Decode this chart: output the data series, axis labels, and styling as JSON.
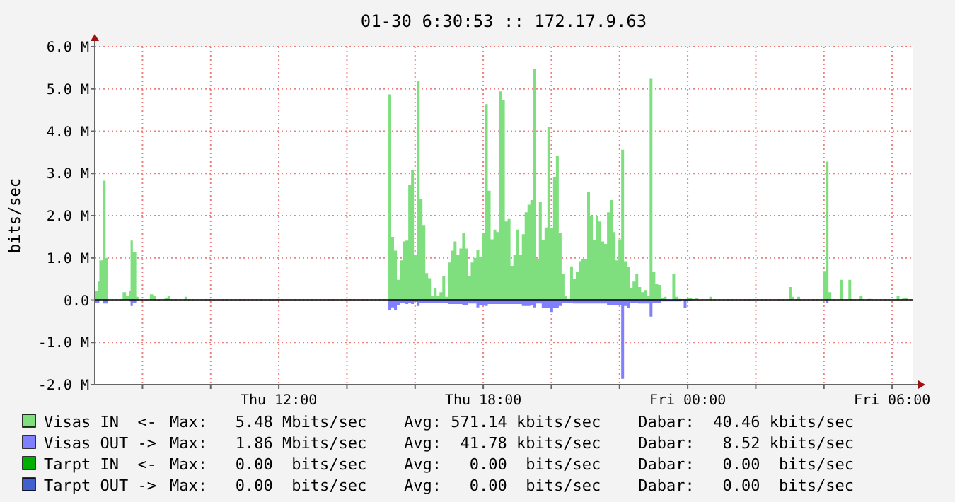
{
  "chart_data": {
    "type": "area",
    "title": "01-30 6:30:53 :: 172.17.9.63",
    "ylabel": "bits/sec",
    "xlim": [
      "--01-29T06:36",
      "--01-30T06:36"
    ],
    "xticks": [
      {
        "value": "--01-29T08:00",
        "label": null
      },
      {
        "value": "--01-29T10:00",
        "label": null
      },
      {
        "value": "--01-29T12:00",
        "label": "Thu 12:00"
      },
      {
        "value": "--01-29T14:00",
        "label": null
      },
      {
        "value": "--01-29T16:00",
        "label": null
      },
      {
        "value": "--01-29T18:00",
        "label": "Thu 18:00"
      },
      {
        "value": "--01-29T20:00",
        "label": null
      },
      {
        "value": "--01-29T22:00",
        "label": null
      },
      {
        "value": "--01-30T00:00",
        "label": "Fri 00:00"
      },
      {
        "value": "--01-30T02:00",
        "label": null
      },
      {
        "value": "--01-30T04:00",
        "label": null
      },
      {
        "value": "--01-30T06:00",
        "label": "Fri 06:00"
      }
    ],
    "ylim": [
      -2,
      6
    ],
    "yticks": [
      {
        "value": -2,
        "label": "-2.0 M"
      },
      {
        "value": -1,
        "label": "-1.0 M"
      },
      {
        "value": 0,
        "label": "0.0"
      },
      {
        "value": 1,
        "label": "1.0 M"
      },
      {
        "value": 2,
        "label": "2.0 M"
      },
      {
        "value": 3,
        "label": "3.0 M"
      },
      {
        "value": 4,
        "label": "4.0 M"
      },
      {
        "value": 5,
        "label": "5.0 M"
      },
      {
        "value": 6,
        "label": "6.0 M"
      }
    ],
    "grid": true,
    "legend": "bottom",
    "ref_lines": [
      {
        "axis": "y",
        "value": 0,
        "color": "#000000"
      }
    ],
    "series": [
      {
        "name": "Visas IN  <-",
        "color": "#7fdf7f",
        "x": [
          "--01-29T06:37",
          "--01-29T06:41",
          "--01-29T06:44",
          "--01-29T06:50",
          "--01-29T06:55",
          "--01-29T06:59",
          "--01-29T07:25",
          "--01-29T07:31",
          "--01-29T07:36",
          "--01-29T07:39",
          "--01-29T07:43",
          "--01-29T07:49",
          "--01-29T07:53",
          "--01-29T08:13",
          "--01-29T08:19",
          "--01-29T08:24",
          "--01-29T08:39",
          "--01-29T08:44",
          "--01-29T08:49",
          "--01-29T09:14",
          "--01-29T09:18",
          "--01-29T15:13",
          "--01-29T15:18",
          "--01-29T15:23",
          "--01-29T15:28",
          "--01-29T15:33",
          "--01-29T15:38",
          "--01-29T15:43",
          "--01-29T15:48",
          "--01-29T15:53",
          "--01-29T15:58",
          "--01-29T16:03",
          "--01-29T16:08",
          "--01-29T16:13",
          "--01-29T16:18",
          "--01-29T16:23",
          "--01-29T16:28",
          "--01-29T16:33",
          "--01-29T16:38",
          "--01-29T16:43",
          "--01-29T16:48",
          "--01-29T16:53",
          "--01-29T16:58",
          "--01-29T17:03",
          "--01-29T17:08",
          "--01-29T17:13",
          "--01-29T17:18",
          "--01-29T17:23",
          "--01-29T17:28",
          "--01-29T17:33",
          "--01-29T17:38",
          "--01-29T17:43",
          "--01-29T17:48",
          "--01-29T17:53",
          "--01-29T17:58",
          "--01-29T18:03",
          "--01-29T18:08",
          "--01-29T18:13",
          "--01-29T18:18",
          "--01-29T18:23",
          "--01-29T18:28",
          "--01-29T18:33",
          "--01-29T18:38",
          "--01-29T18:43",
          "--01-29T18:48",
          "--01-29T18:53",
          "--01-29T18:58",
          "--01-29T19:03",
          "--01-29T19:08",
          "--01-29T19:13",
          "--01-29T19:18",
          "--01-29T19:23",
          "--01-29T19:28",
          "--01-29T19:33",
          "--01-29T19:38",
          "--01-29T19:43",
          "--01-29T19:48",
          "--01-29T19:53",
          "--01-29T19:58",
          "--01-29T20:03",
          "--01-29T20:08",
          "--01-29T20:13",
          "--01-29T20:18",
          "--01-29T20:23",
          "--01-29T20:28",
          "--01-29T20:33",
          "--01-29T20:38",
          "--01-29T20:43",
          "--01-29T20:48",
          "--01-29T20:53",
          "--01-29T20:58",
          "--01-29T21:03",
          "--01-29T21:08",
          "--01-29T21:13",
          "--01-29T21:18",
          "--01-29T21:23",
          "--01-29T21:28",
          "--01-29T21:33",
          "--01-29T21:38",
          "--01-29T21:43",
          "--01-29T21:48",
          "--01-29T21:53",
          "--01-29T21:58",
          "--01-29T22:03",
          "--01-29T22:08",
          "--01-29T22:13",
          "--01-29T22:18",
          "--01-29T22:23",
          "--01-29T22:28",
          "--01-29T22:33",
          "--01-29T22:38",
          "--01-29T22:43",
          "--01-29T22:48",
          "--01-29T22:53",
          "--01-29T22:58",
          "--01-29T23:03",
          "--01-29T23:08",
          "--01-29T23:13",
          "--01-29T23:18",
          "--01-29T23:23",
          "--01-29T23:33",
          "--01-29T23:38",
          "--01-29T23:43",
          "--01-29T23:48",
          "--01-29T23:58",
          "--01-30T00:08",
          "--01-30T00:13",
          "--01-30T00:18",
          "--01-30T00:38",
          "--01-30T00:43",
          "--01-30T02:58",
          "--01-30T03:03",
          "--01-30T03:08",
          "--01-30T03:13",
          "--01-30T03:18",
          "--01-30T03:58",
          "--01-30T04:03",
          "--01-30T04:08",
          "--01-30T04:13",
          "--01-30T04:28",
          "--01-30T04:33",
          "--01-30T04:43",
          "--01-30T04:48",
          "--01-30T04:53",
          "--01-30T05:03",
          "--01-30T05:08",
          "--01-30T05:18",
          "--01-30T05:23",
          "--01-30T06:08",
          "--01-30T06:13",
          "--01-30T06:18",
          "--01-30T06:28"
        ],
        "values": [
          0.22,
          0.44,
          0.94,
          2.83,
          1.0,
          0,
          0.19,
          0.11,
          0.22,
          1.41,
          1.14,
          0.08,
          0,
          0.14,
          0.11,
          0,
          0.06,
          0.09,
          0,
          0.08,
          0,
          4.87,
          1.5,
          1.17,
          0.48,
          0.94,
          1.39,
          1.41,
          2.72,
          3.08,
          1.08,
          5.19,
          2.39,
          1.78,
          0.64,
          0.52,
          0.11,
          0.28,
          0.11,
          0.19,
          0.56,
          0.08,
          0.89,
          1.17,
          1.39,
          1.08,
          1.22,
          1.58,
          1.22,
          0.56,
          0.89,
          1.0,
          1.19,
          1.03,
          1.59,
          4.64,
          2.59,
          1.44,
          1.67,
          1.61,
          4.94,
          4.74,
          1.86,
          1.92,
          0.81,
          1.08,
          1.67,
          1.08,
          1.56,
          2.08,
          2.26,
          2.37,
          5.48,
          0.97,
          2.33,
          1.42,
          1.72,
          4.09,
          1.7,
          2.92,
          3.41,
          1.59,
          0.61,
          0.11,
          0.03,
          0.8,
          0.5,
          0.67,
          0.92,
          0.97,
          0.97,
          2.56,
          2.0,
          1.42,
          2.0,
          1.86,
          1.39,
          1.33,
          2.08,
          2.37,
          1.61,
          0.94,
          1.44,
          3.56,
          0.92,
          0.78,
          0.28,
          0.44,
          0.61,
          0.31,
          0.19,
          0.24,
          0.11,
          5.24,
          0.67,
          0.39,
          0.36,
          0.06,
          0.08,
          0,
          0.61,
          0.08,
          0.03,
          0.02,
          0.04,
          0,
          0.04,
          0,
          0.08,
          0,
          0.31,
          0.08,
          0,
          0.08,
          0,
          0.69,
          3.28,
          0.19,
          0,
          0.48,
          0,
          0.48,
          0.02,
          0,
          0.11,
          0,
          0.03,
          0,
          0.11,
          0,
          0.04,
          0
        ]
      },
      {
        "name": "Visas OUT ->",
        "color": "#7f7fff",
        "x": [
          "--01-29T06:37",
          "--01-29T06:44",
          "--01-29T06:50",
          "--01-29T06:59",
          "--01-29T07:37",
          "--01-29T07:39",
          "--01-29T07:43",
          "--01-29T07:49",
          "--01-29T15:13",
          "--01-29T15:18",
          "--01-29T15:23",
          "--01-29T15:28",
          "--01-29T15:33",
          "--01-29T15:43",
          "--01-29T15:48",
          "--01-29T15:53",
          "--01-29T15:58",
          "--01-29T16:03",
          "--01-29T16:08",
          "--01-29T16:58",
          "--01-29T17:23",
          "--01-29T17:33",
          "--01-29T17:48",
          "--01-29T17:53",
          "--01-29T18:03",
          "--01-29T18:08",
          "--01-29T19:08",
          "--01-29T19:23",
          "--01-29T19:28",
          "--01-29T19:33",
          "--01-29T19:43",
          "--01-29T19:58",
          "--01-29T20:03",
          "--01-29T20:13",
          "--01-29T20:18",
          "--01-29T20:38",
          "--01-29T21:38",
          "--01-29T22:03",
          "--01-29T22:08",
          "--01-29T22:13",
          "--01-29T22:18",
          "--01-29T22:33",
          "--01-29T22:53",
          "--01-29T22:58",
          "--01-29T23:13",
          "--01-29T23:48",
          "--01-29T23:53",
          "--01-29T23:58",
          "--01-30T00:08",
          "--01-30T04:03",
          "--01-30T04:08"
        ],
        "values": [
          -0.06,
          0,
          -0.08,
          0,
          -0.03,
          -0.14,
          -0.06,
          0,
          -0.24,
          -0.17,
          -0.24,
          -0.11,
          -0.06,
          -0.09,
          -0.06,
          -0.09,
          -0.04,
          -0.14,
          -0.06,
          -0.09,
          -0.11,
          -0.08,
          -0.17,
          -0.11,
          -0.14,
          -0.09,
          -0.14,
          -0.11,
          -0.17,
          -0.08,
          -0.19,
          -0.28,
          -0.19,
          -0.14,
          -0.06,
          -0.08,
          -0.11,
          -1.86,
          -0.14,
          -0.19,
          -0.06,
          -0.08,
          -0.39,
          -0.06,
          -0.03,
          0,
          -0.19,
          -0.02,
          0,
          -0.06,
          0
        ]
      },
      {
        "name": "Tarpt IN  <-",
        "color": "#00b000"
      },
      {
        "name": "Tarpt OUT ->",
        "color": "#4060d0"
      }
    ],
    "annotations": [
      "Max:   5.48 Mbits/sec    Avg: 571.14 kbits/sec    Dabar:  40.46 kbits/sec",
      "Max:   1.86 Mbits/sec    Avg:  41.78 kbits/sec    Dabar:   8.52 kbits/sec",
      "Max:   0.00  bits/sec    Avg:   0.00  bits/sec    Dabar:   0.00  bits/sec",
      "Max:   0.00  bits/sec    Avg:   0.00  bits/sec    Dabar:   0.00  bits/sec"
    ]
  }
}
